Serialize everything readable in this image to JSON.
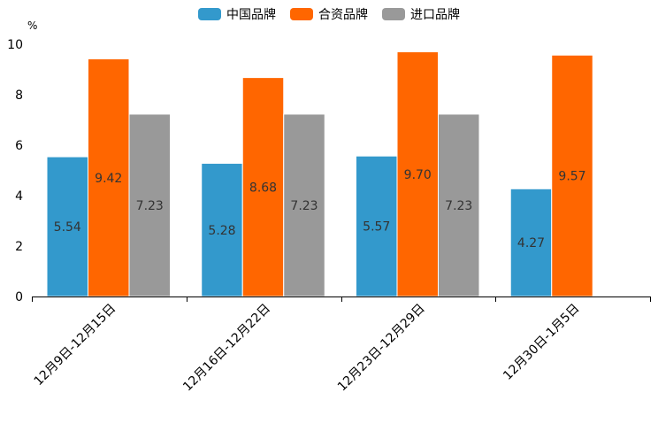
{
  "chart_data": {
    "type": "bar",
    "title": "",
    "ylabel": "%",
    "xlabel": "",
    "ylim": [
      0,
      10
    ],
    "yticks": [
      "0",
      "2",
      "4",
      "6",
      "8",
      "10"
    ],
    "categories": [
      "12月9日-12月15日",
      "12月16日-12月22日",
      "12月23日-12月29日",
      "12月30日-1月5日"
    ],
    "legend_position": "top-center",
    "series": [
      {
        "name": "中国品牌",
        "color": "#3399cc",
        "values": [
          5.54,
          5.28,
          5.57,
          4.27
        ],
        "labels": [
          "5.54",
          "5.28",
          "5.57",
          "4.27"
        ]
      },
      {
        "name": "合资品牌",
        "color": "#ff6600",
        "values": [
          9.42,
          8.68,
          9.7,
          9.57
        ],
        "labels": [
          "9.42",
          "8.68",
          "9.70",
          "9.57"
        ]
      },
      {
        "name": "进口品牌",
        "color": "#999999",
        "values": [
          7.23,
          7.23,
          7.23,
          null
        ],
        "labels": [
          "7.23",
          "7.23",
          "7.23",
          null
        ]
      }
    ]
  }
}
